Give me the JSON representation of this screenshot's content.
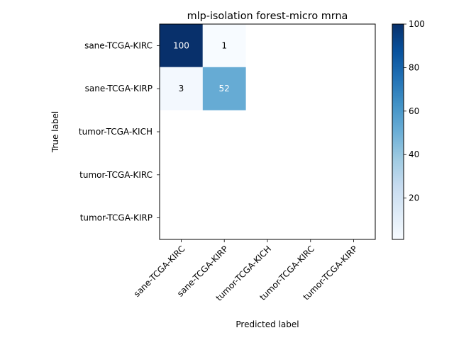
{
  "chart_data": {
    "type": "heatmap",
    "title": "mlp-isolation forest-micro mrna",
    "xlabel": "Predicted label",
    "ylabel": "True label",
    "x_categories": [
      "sane-TCGA-KIRC",
      "sane-TCGA-KIRP",
      "tumor-TCGA-KICH",
      "tumor-TCGA-KIRC",
      "tumor-TCGA-KIRP"
    ],
    "y_categories": [
      "sane-TCGA-KIRC",
      "sane-TCGA-KIRP",
      "tumor-TCGA-KICH",
      "tumor-TCGA-KIRC",
      "tumor-TCGA-KIRP"
    ],
    "cells": [
      {
        "row": 0,
        "col": 0,
        "value": 100,
        "label": "100"
      },
      {
        "row": 0,
        "col": 1,
        "value": 1,
        "label": "1"
      },
      {
        "row": 1,
        "col": 0,
        "value": 3,
        "label": "3"
      },
      {
        "row": 1,
        "col": 1,
        "value": 52,
        "label": "52"
      }
    ],
    "colorbar": {
      "colormap": "Blues",
      "range": [
        1,
        100
      ],
      "ticks": [
        20,
        40,
        60,
        80,
        100
      ],
      "tick_labels": [
        "20",
        "40",
        "60",
        "80",
        "100"
      ]
    },
    "grid": false
  }
}
